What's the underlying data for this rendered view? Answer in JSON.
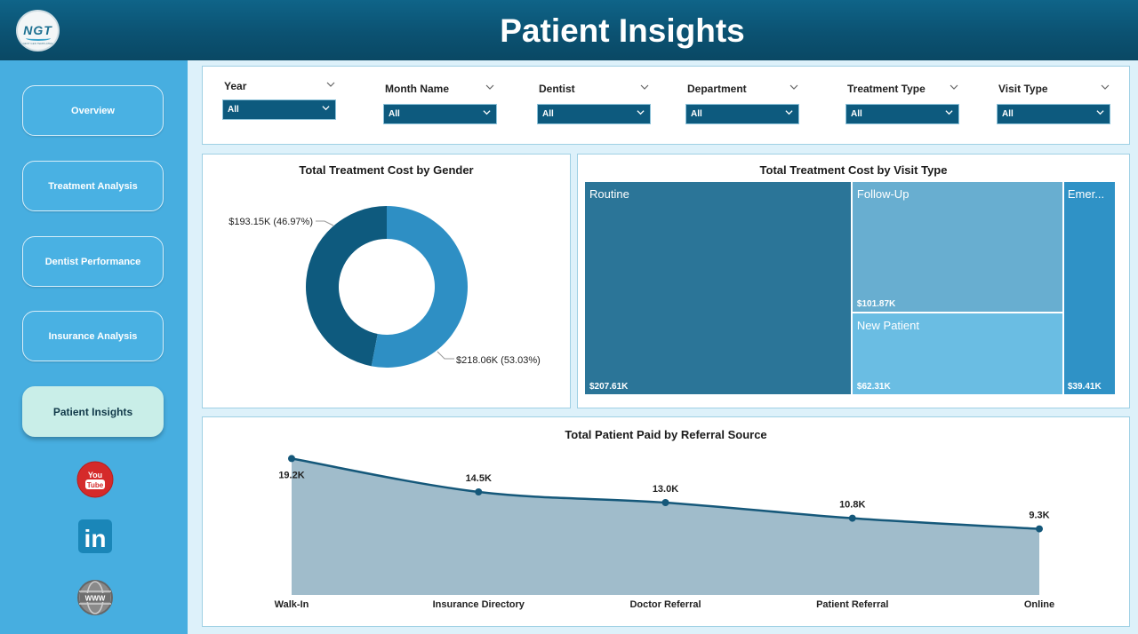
{
  "header": {
    "title": "Patient Insights",
    "logo_text": "NGT",
    "logo_subtext": "NEXT GEN TEMPLATES"
  },
  "sidebar": {
    "items": [
      {
        "label": "Overview",
        "active": false
      },
      {
        "label": "Treatment Analysis",
        "active": false
      },
      {
        "label": "Dentist Performance",
        "active": false
      },
      {
        "label": "Insurance Analysis",
        "active": false
      },
      {
        "label": "Patient Insights",
        "active": true
      }
    ],
    "social": [
      {
        "name": "youtube",
        "text_top": "You",
        "text_bottom": "Tube"
      },
      {
        "name": "linkedin",
        "text": "in"
      },
      {
        "name": "website",
        "text": "WWW"
      }
    ]
  },
  "filters": [
    {
      "label": "Year",
      "value": "All"
    },
    {
      "label": "Month Name",
      "value": "All"
    },
    {
      "label": "Dentist",
      "value": "All"
    },
    {
      "label": "Department",
      "value": "All"
    },
    {
      "label": "Treatment Type",
      "value": "All"
    },
    {
      "label": "Visit Type",
      "value": "All"
    }
  ],
  "colors": {
    "header": "#0b5272",
    "sidebar": "#47aee0",
    "dark_blue": "#0e5a7e",
    "mid_blue": "#2e8fc4",
    "area_fill": "#a0bccb",
    "line": "#15587a"
  },
  "charts": {
    "gender": {
      "title": "Total Treatment Cost by Gender",
      "chart_data": {
        "type": "pie",
        "donut": true,
        "slices": [
          {
            "value": 193.15,
            "label": "$193.15K (46.97%)",
            "percent": 46.97,
            "color": "#0e5a7e"
          },
          {
            "value": 218.06,
            "label": "$218.06K (53.03%)",
            "percent": 53.03,
            "color": "#2e8fc4"
          }
        ]
      }
    },
    "visit": {
      "title": "Total Treatment Cost by Visit Type",
      "chart_data": {
        "type": "treemap",
        "items": [
          {
            "name": "Routine",
            "value": 207.61,
            "label": "$207.61K",
            "color": "#2b7598"
          },
          {
            "name": "Follow-Up",
            "value": 101.87,
            "label": "$101.87K",
            "color": "#68aed0"
          },
          {
            "name": "New Patient",
            "value": 62.31,
            "label": "$62.31K",
            "color": "#6abde3"
          },
          {
            "name": "Emer...",
            "value": 39.41,
            "label": "$39.41K",
            "color": "#2f92c6"
          }
        ]
      }
    },
    "referral": {
      "title": "Total Patient Paid by Referral Source",
      "chart_data": {
        "type": "area",
        "categories": [
          "Walk-In",
          "Insurance Directory",
          "Doctor Referral",
          "Patient Referral",
          "Online"
        ],
        "values": [
          19.2,
          14.5,
          13.0,
          10.8,
          9.3
        ],
        "labels": [
          "19.2K",
          "14.5K",
          "13.0K",
          "10.8K",
          "9.3K"
        ],
        "ylim": [
          0,
          21.5
        ]
      }
    }
  }
}
